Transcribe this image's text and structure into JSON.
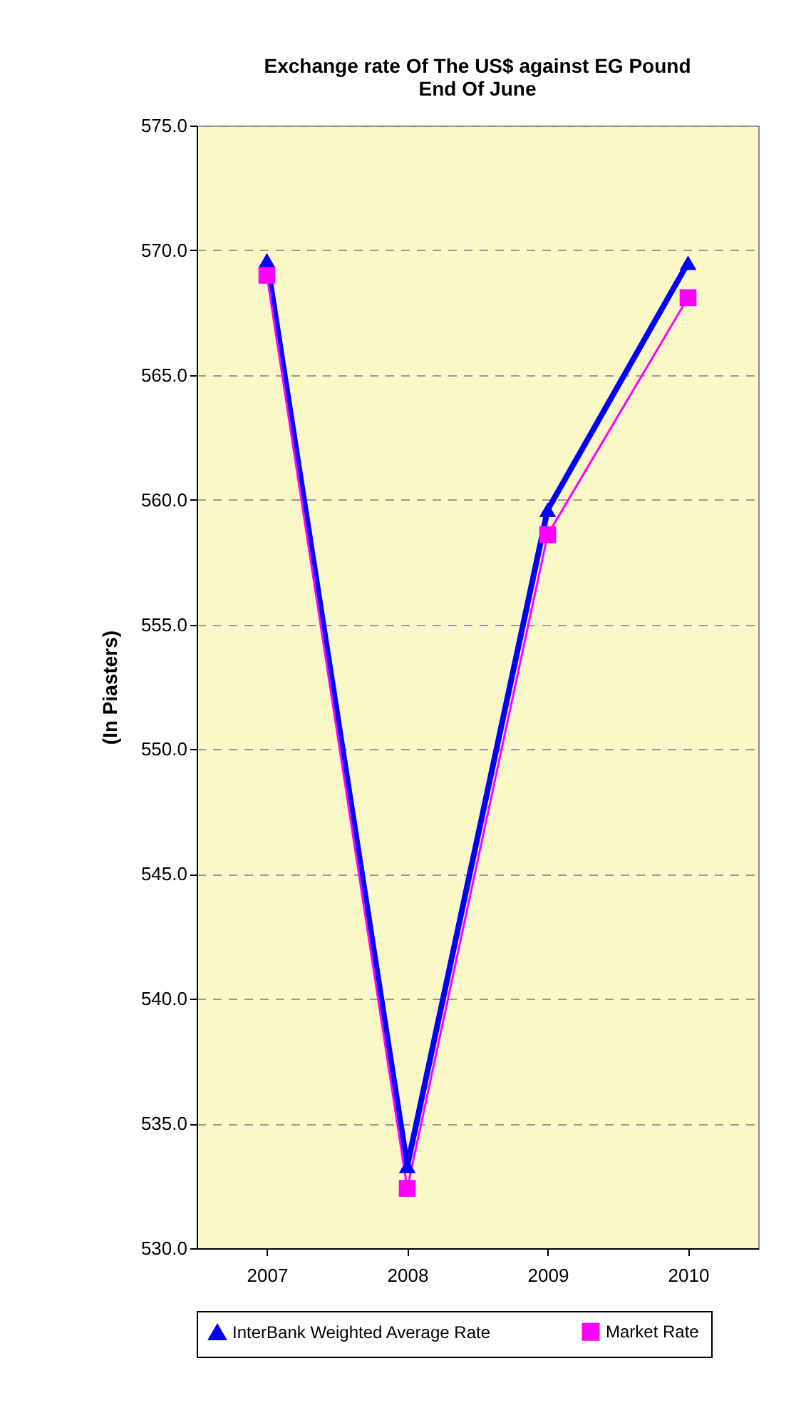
{
  "chart_data": {
    "type": "line",
    "title": "Exchange rate Of The US$ against EG Pound",
    "subtitle": "End Of June",
    "ylabel": "(In Piasters)",
    "categories": [
      "2007",
      "2008",
      "2009",
      "2010"
    ],
    "series": [
      {
        "name": "InterBank Weighted Average Rate",
        "color": "#0000ff",
        "marker": "triangle",
        "values": [
          569.6,
          533.3,
          559.6,
          569.5
        ]
      },
      {
        "name": "Market Rate",
        "color": "#ff00ff",
        "marker": "square",
        "values": [
          569.0,
          532.4,
          558.6,
          568.1
        ]
      }
    ],
    "ylim": [
      530,
      575
    ],
    "yticks": [
      {
        "value": 530,
        "label": "530.0"
      },
      {
        "value": 535,
        "label": "535.0"
      },
      {
        "value": 540,
        "label": "540.0"
      },
      {
        "value": 545,
        "label": "545.0"
      },
      {
        "value": 550,
        "label": "550.0"
      },
      {
        "value": 555,
        "label": "555.0"
      },
      {
        "value": 560,
        "label": "560.0"
      },
      {
        "value": 565,
        "label": "565.0"
      },
      {
        "value": 570,
        "label": "570.0"
      },
      {
        "value": 575,
        "label": "575.0"
      }
    ],
    "grid": "y",
    "legend": "bottom"
  }
}
